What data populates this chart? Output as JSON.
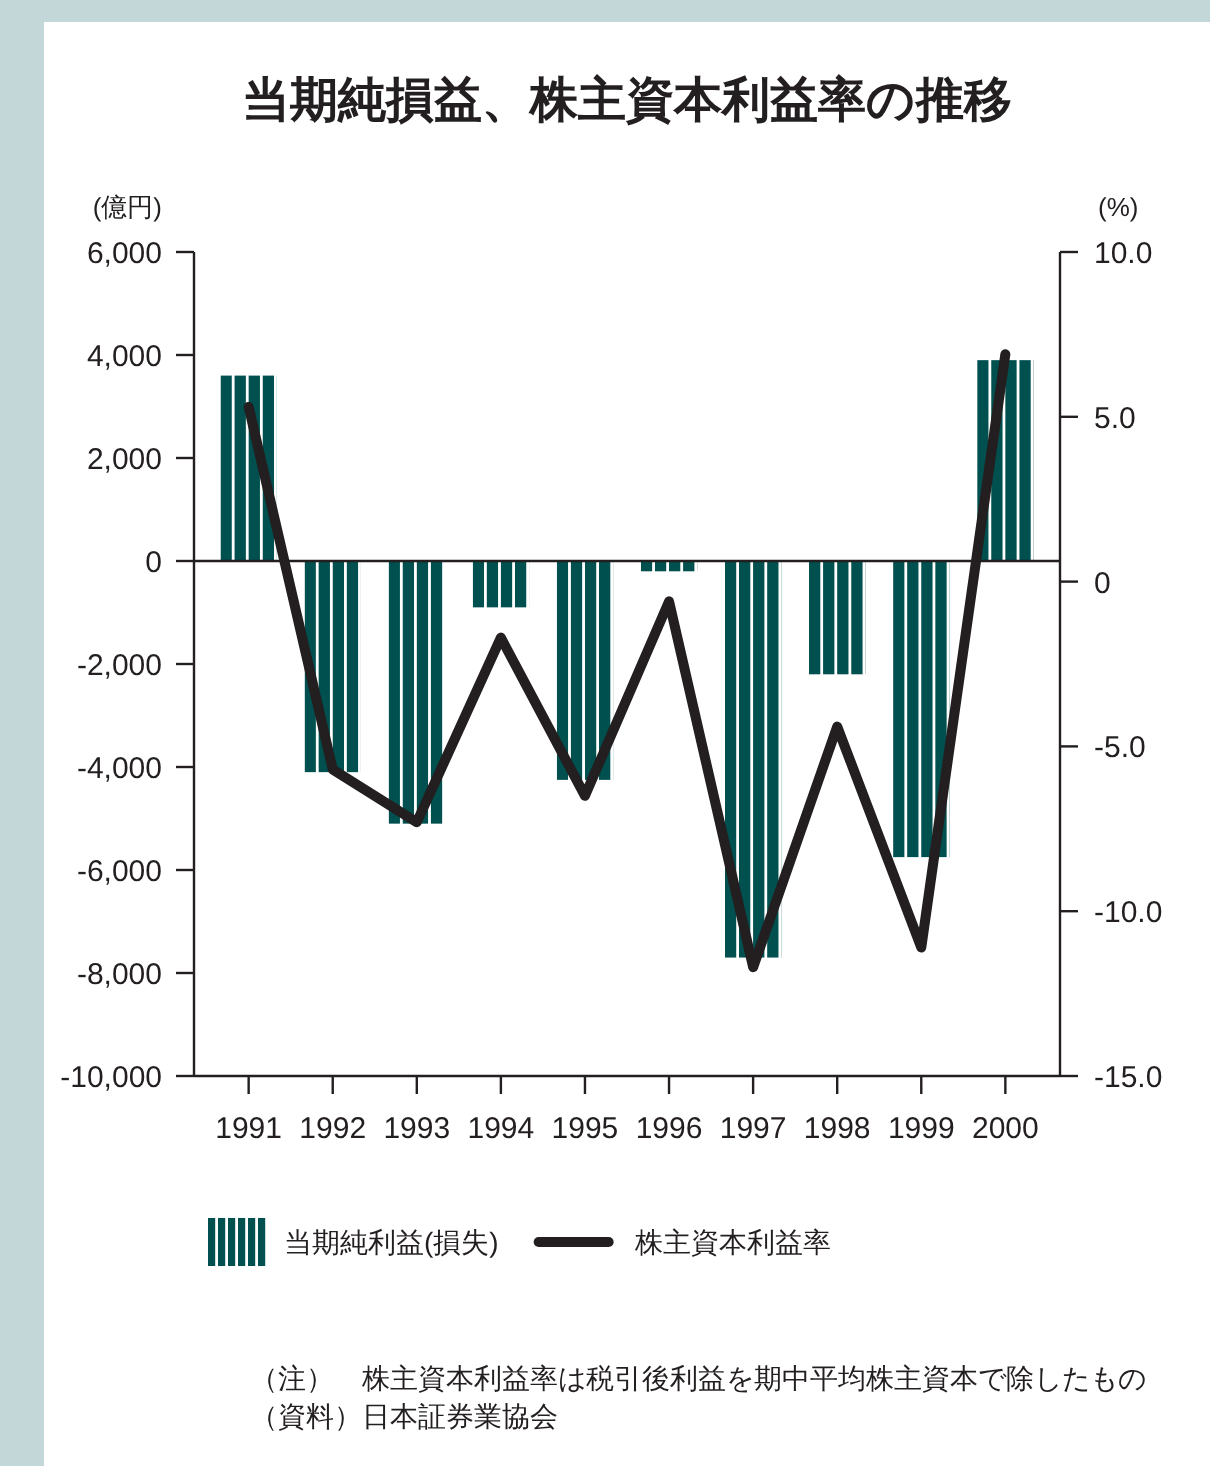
{
  "chart_data": {
    "type": "bar",
    "title": "当期純損益、株主資本利益率の推移",
    "ylabel": "(億円)",
    "y2label": "(%)",
    "categories": [
      "1991",
      "1992",
      "1993",
      "1994",
      "1995",
      "1996",
      "1997",
      "1998",
      "1999",
      "2000"
    ],
    "series": [
      {
        "name": "当期純利益(損失)",
        "color": "#00504f",
        "values": [
          3600,
          -4100,
          -5100,
          -900,
          -4250,
          -200,
          -7700,
          -2200,
          -5750,
          3900
        ]
      },
      {
        "name": "株主資本利益率",
        "type": "line",
        "axis": "y2",
        "color": "#231f20",
        "line_style": "solid",
        "values": [
          5.3,
          -5.7,
          -7.3,
          -1.7,
          -6.5,
          -0.6,
          -11.7,
          -4.4,
          -11.1,
          6.9
        ]
      }
    ],
    "ylim": [
      -10000,
      6000
    ],
    "yticks": [
      {
        "value": -10000,
        "label": "-10,000"
      },
      {
        "value": -8000,
        "label": "-8,000"
      },
      {
        "value": -6000,
        "label": "-6,000"
      },
      {
        "value": -4000,
        "label": "-4,000"
      },
      {
        "value": -2000,
        "label": "-2,000"
      },
      0,
      {
        "value": 2000,
        "label": "2,000"
      },
      {
        "value": 4000,
        "label": "4,000"
      },
      {
        "value": 6000,
        "label": "6,000"
      }
    ],
    "y2lim": [
      -15,
      10
    ],
    "y2ticks": [
      {
        "value": -15,
        "label": "-15.0"
      },
      {
        "value": -10,
        "label": "-10.0"
      },
      {
        "value": -5,
        "label": "-5.0"
      },
      0,
      {
        "value": 5,
        "label": "5.0"
      },
      {
        "value": 10,
        "label": "10.0"
      }
    ],
    "legend": "bottom",
    "annotations": [
      "（注）　株主資本利益率は税引後利益を期中平均株主資本で除したもの",
      "（資料）日本証券業協会"
    ]
  }
}
